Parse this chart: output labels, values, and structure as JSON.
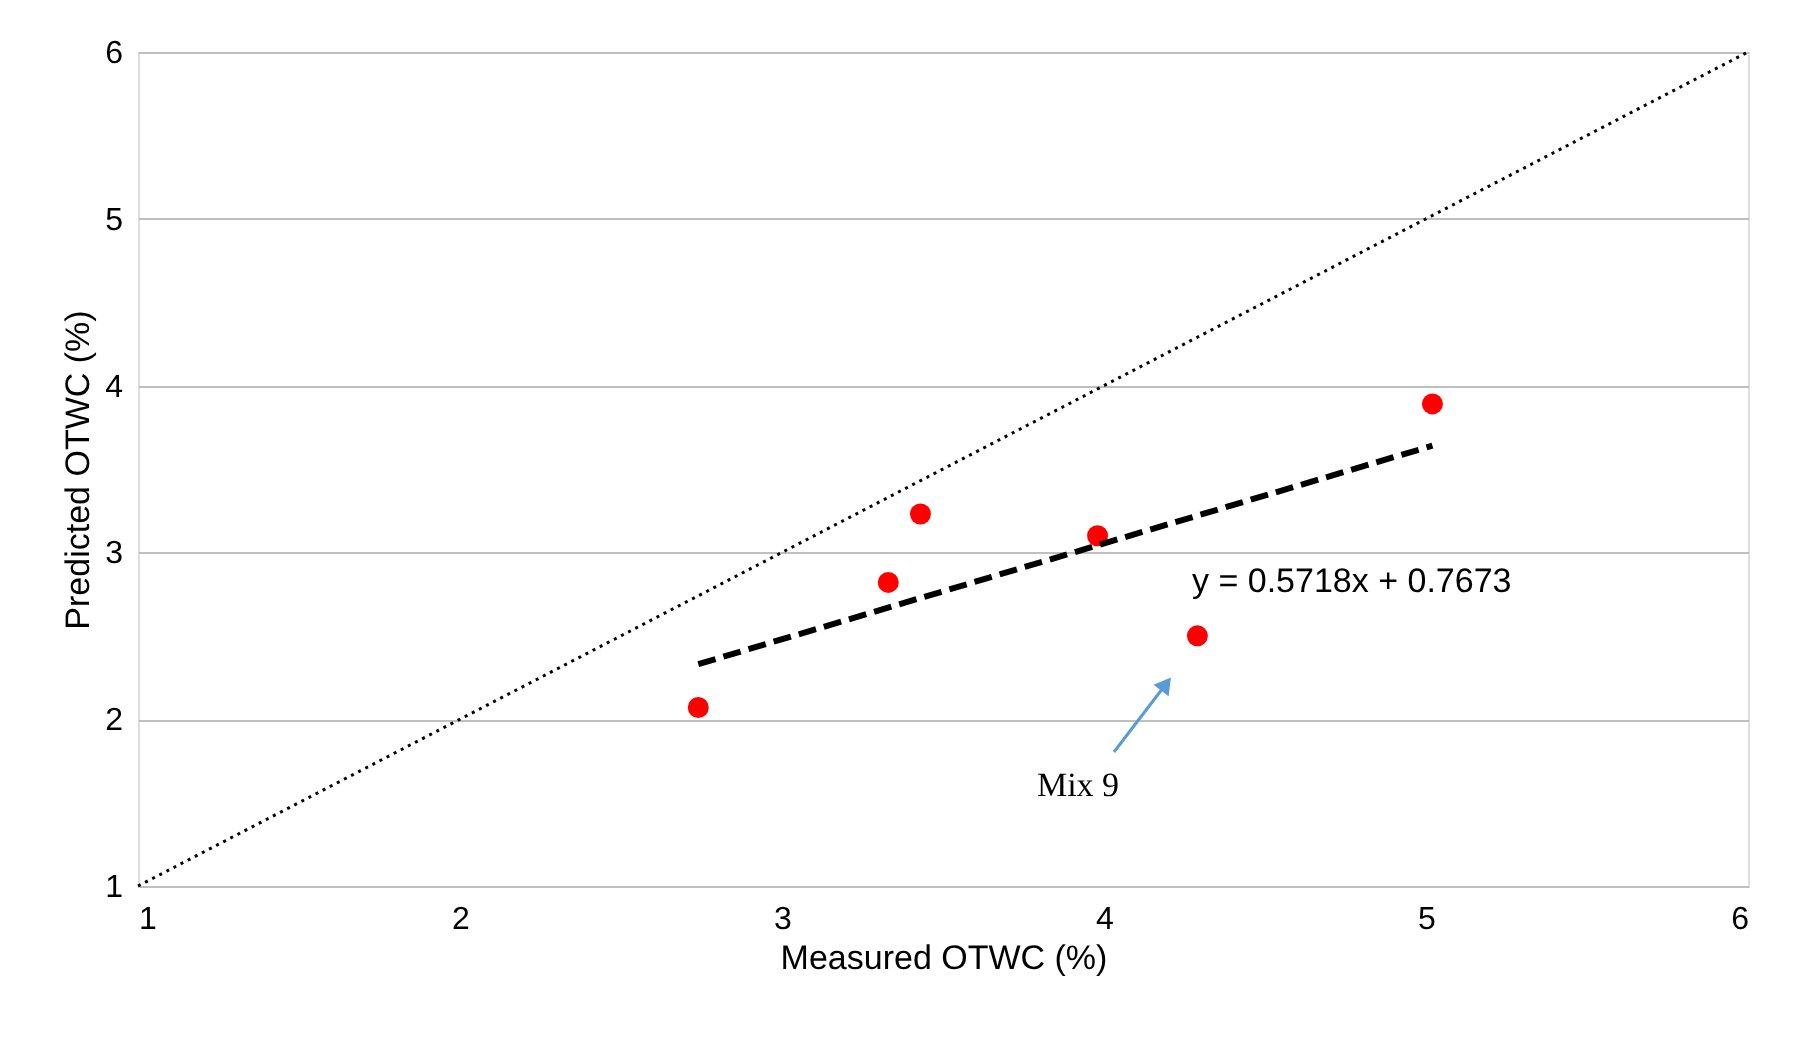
{
  "chart_data": {
    "type": "scatter",
    "xlabel": "Measured OTWC (%)",
    "ylabel": "Predicted OTWC (%)",
    "xlim": [
      1,
      6
    ],
    "ylim": [
      1,
      6
    ],
    "xticks": [
      1,
      2,
      3,
      4,
      5,
      6
    ],
    "yticks": [
      1,
      2,
      3,
      4,
      5,
      6
    ],
    "grid": "y",
    "legend": false,
    "series": [
      {
        "color": "#ff0000",
        "marker": "circle",
        "x": [
          2.74,
          3.33,
          3.43,
          3.98,
          4.29,
          5.02
        ],
        "values": [
          2.07,
          2.82,
          3.23,
          3.1,
          2.5,
          3.89
        ]
      },
      {
        "type": "line",
        "color": "#000000",
        "line_style": "dashed",
        "marker": "none",
        "x": [
          2.74,
          5.02
        ],
        "values": [
          2.33,
          3.64
        ]
      },
      {
        "type": "line",
        "color": "#000000",
        "line_style": "dotted",
        "marker": "none",
        "x": [
          1,
          6
        ],
        "values": [
          1,
          6
        ]
      }
    ],
    "annotations": [
      "y = 0.5718x + 0.7673",
      "Mix 9"
    ]
  }
}
